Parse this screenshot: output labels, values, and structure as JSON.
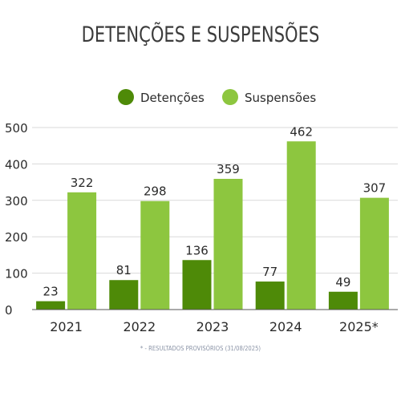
{
  "chart_data": {
    "type": "bar",
    "title": "DETENÇÕES E SUSPENSÕES",
    "categories": [
      "2021",
      "2022",
      "2023",
      "2024",
      "2025*"
    ],
    "series": [
      {
        "name": "Detenções",
        "color": "#4e8a08",
        "values": [
          23,
          81,
          136,
          77,
          49
        ]
      },
      {
        "name": "Suspensões",
        "color": "#8dc63f",
        "values": [
          322,
          298,
          359,
          462,
          307
        ]
      }
    ],
    "xlabel": "",
    "ylabel": "",
    "ylim": [
      0,
      500
    ],
    "yticks": [
      0,
      100,
      200,
      300,
      400,
      500
    ],
    "grid": true,
    "legend": "top-center",
    "footnote": "* - RESULTADOS PROVISÓRIOS (31/08/2025)"
  }
}
